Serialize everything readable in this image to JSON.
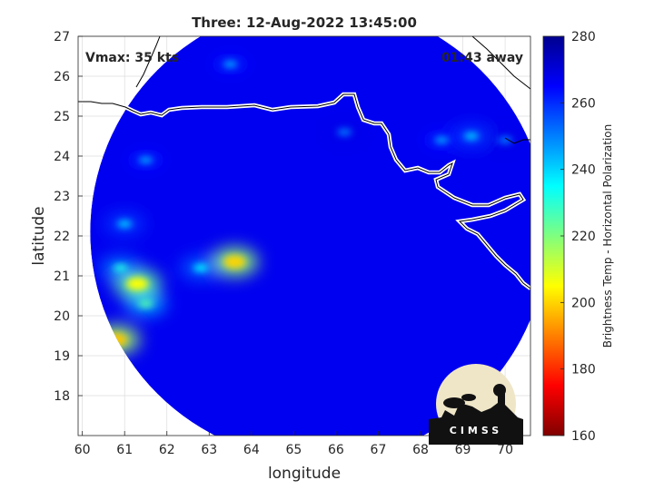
{
  "chart_data": {
    "type": "heatmap",
    "title": "Three: 12-Aug-2022 13:45:00",
    "xlabel": "longitude",
    "ylabel": "latitude",
    "xlim": [
      59.9,
      70.6
    ],
    "ylim": [
      17.0,
      27.0
    ],
    "x_ticks": [
      60,
      61,
      62,
      63,
      64,
      65,
      66,
      67,
      68,
      69,
      70
    ],
    "y_ticks": [
      18,
      19,
      20,
      21,
      22,
      23,
      24,
      25,
      26,
      27
    ],
    "grid": true,
    "annotations": {
      "left": "Vmax: 35 kts",
      "right": "01:43 away"
    },
    "colorbar": {
      "label": "Brightness Temp - Horizontal Polarization",
      "range": [
        160,
        280
      ],
      "ticks": [
        160,
        180,
        200,
        220,
        240,
        260,
        280
      ]
    },
    "swath_center": [
      65.6,
      22.1
    ],
    "background_value": 267,
    "features": [
      {
        "lon": 63.6,
        "lat": 21.35,
        "value": 200
      },
      {
        "lon": 61.3,
        "lat": 20.8,
        "value": 205
      },
      {
        "lon": 60.8,
        "lat": 19.4,
        "value": 198
      },
      {
        "lon": 61.5,
        "lat": 20.3,
        "value": 225
      },
      {
        "lon": 62.8,
        "lat": 21.2,
        "value": 235
      },
      {
        "lon": 61.0,
        "lat": 22.3,
        "value": 240
      },
      {
        "lon": 60.9,
        "lat": 21.2,
        "value": 232
      },
      {
        "lon": 61.5,
        "lat": 23.9,
        "value": 245
      },
      {
        "lon": 69.2,
        "lat": 24.5,
        "value": 240
      },
      {
        "lon": 68.5,
        "lat": 24.4,
        "value": 245
      },
      {
        "lon": 66.2,
        "lat": 24.6,
        "value": 250
      },
      {
        "lon": 63.5,
        "lat": 26.3,
        "value": 245
      },
      {
        "lon": 70.0,
        "lat": 24.4,
        "value": 250
      }
    ]
  },
  "logo": {
    "text": "CIMSS"
  }
}
